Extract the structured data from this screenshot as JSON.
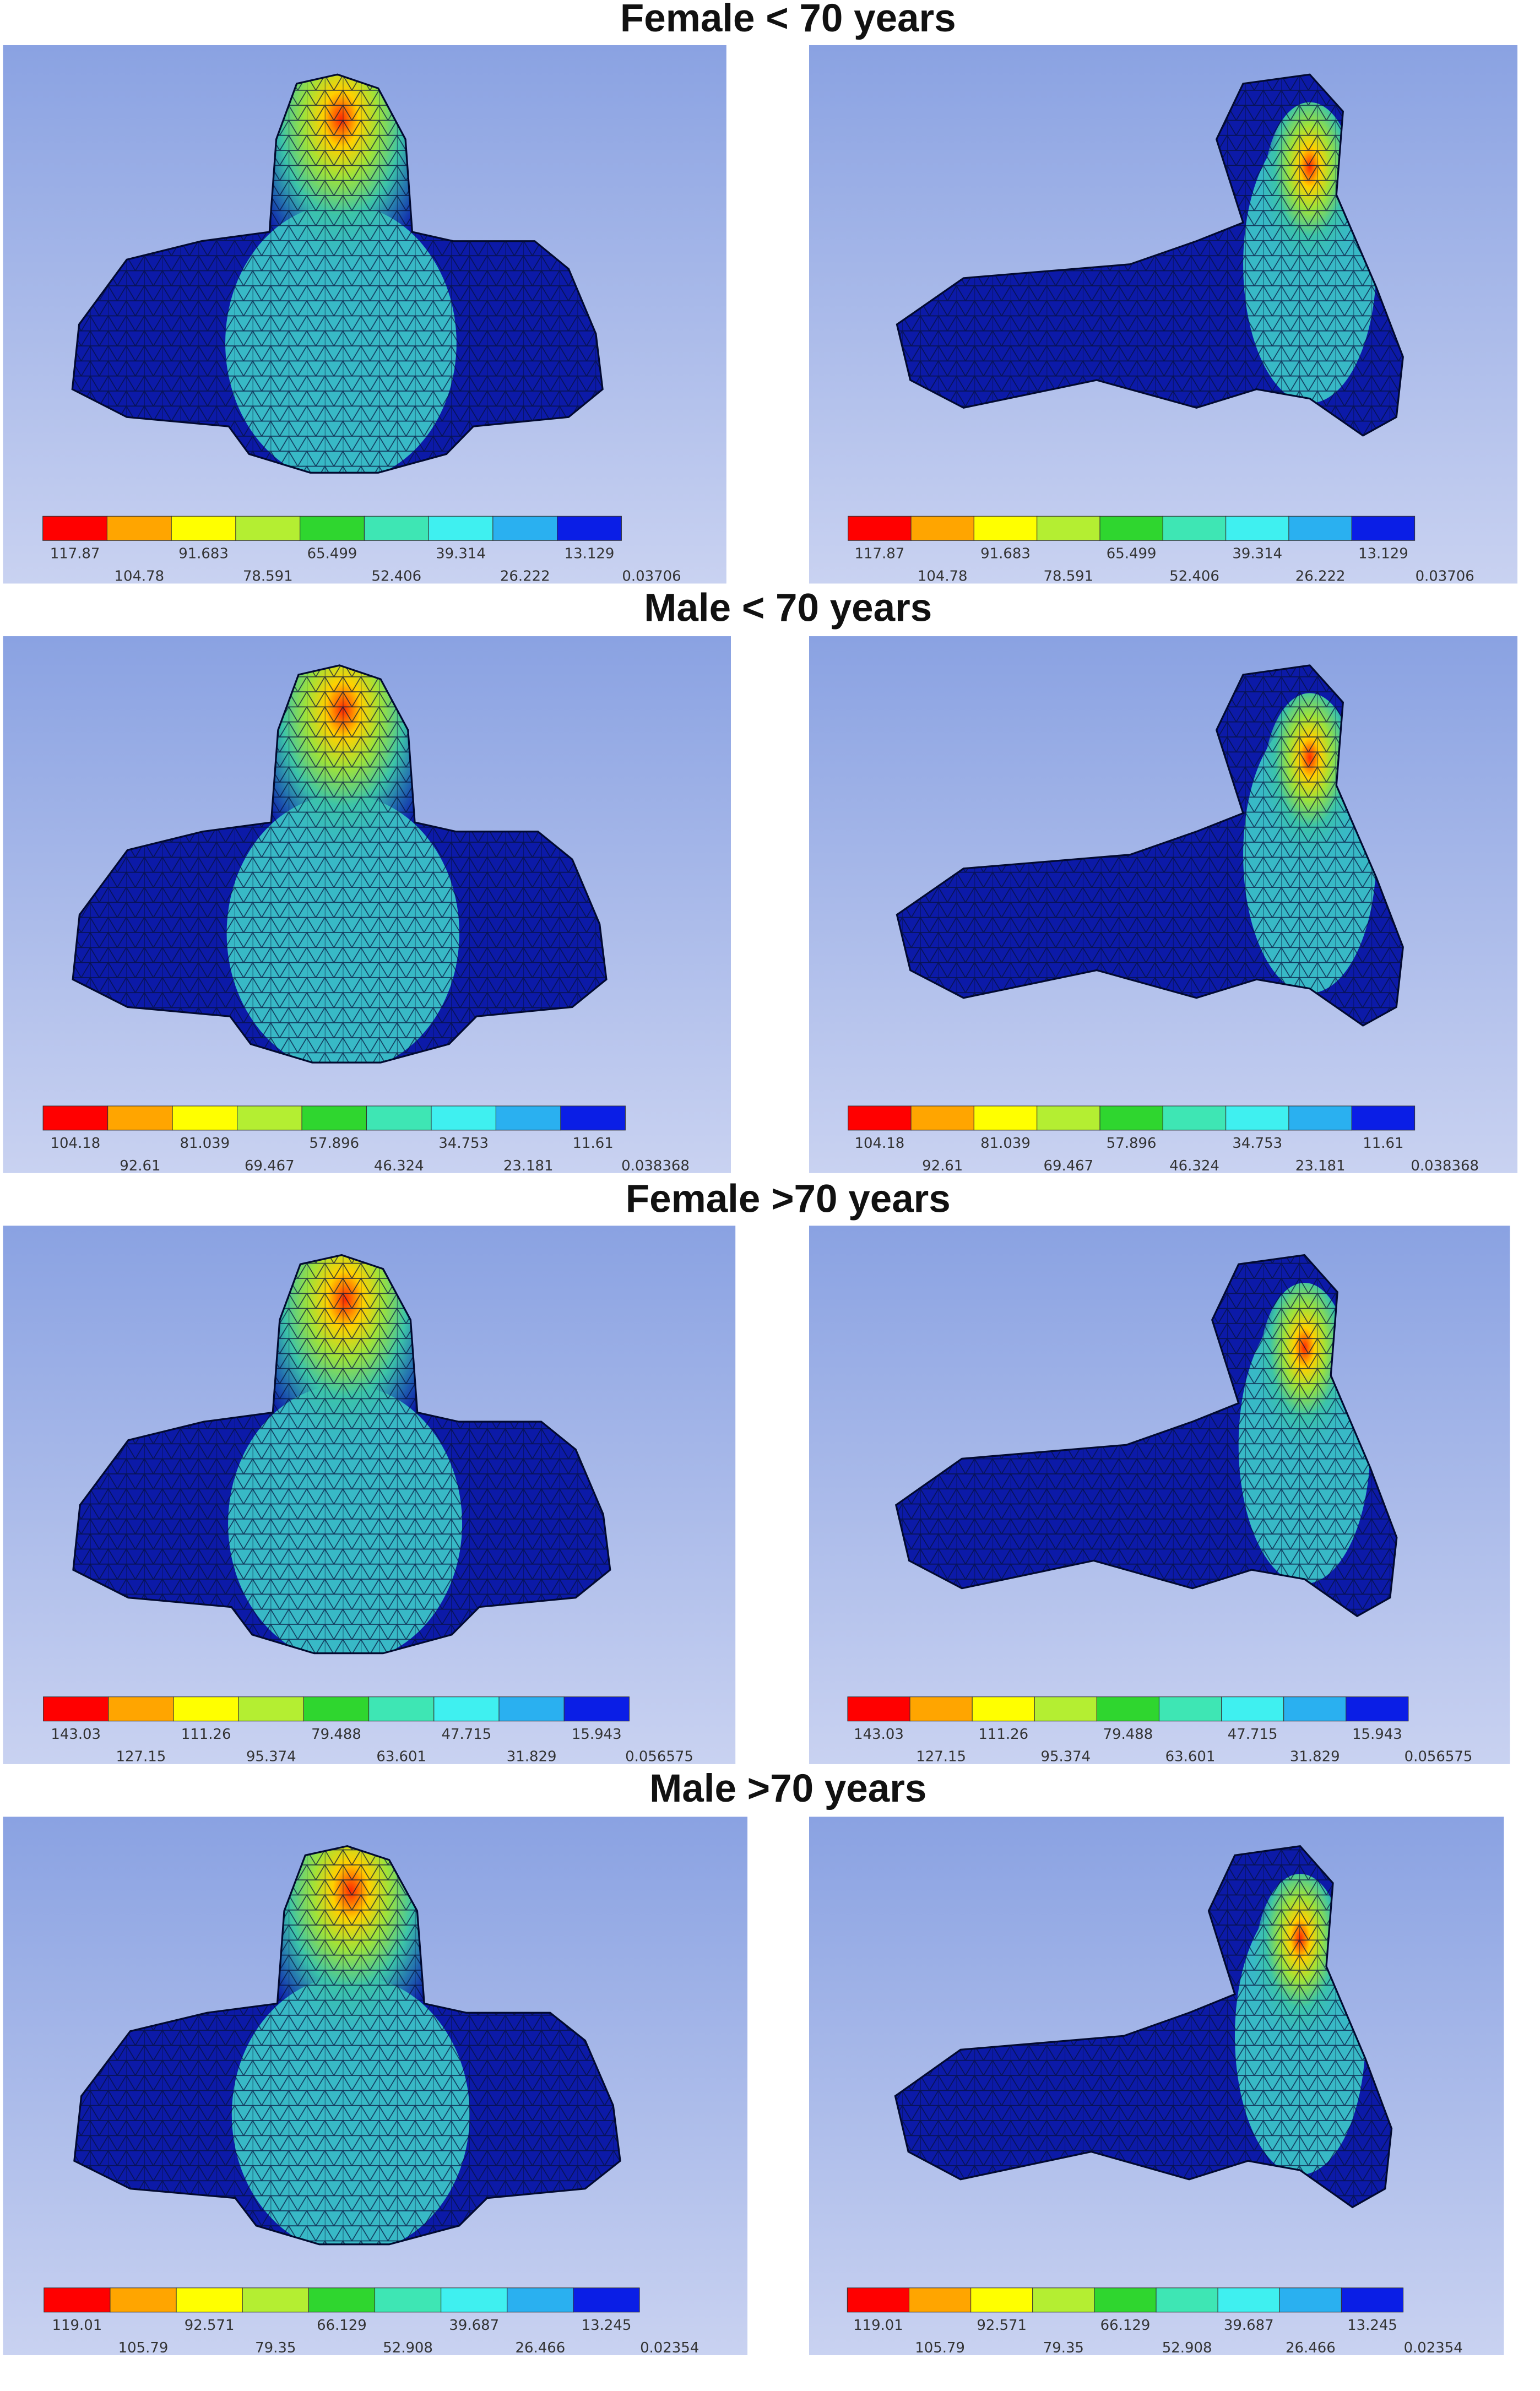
{
  "sections": [
    {
      "title": "Female < 70 years",
      "scale": [
        "117.87",
        "104.78",
        "91.683",
        "78.591",
        "65.499",
        "52.406",
        "39.314",
        "26.222",
        "13.129",
        "0.03706"
      ]
    },
    {
      "title": "Male < 70 years",
      "scale": [
        "104.18",
        "92.61",
        "81.039",
        "69.467",
        "57.896",
        "46.324",
        "34.753",
        "23.181",
        "11.61",
        "0.038368"
      ]
    },
    {
      "title": "Female >70 years",
      "scale": [
        "143.03",
        "127.15",
        "111.26",
        "95.374",
        "79.488",
        "63.601",
        "47.715",
        "31.829",
        "15.943",
        "0.056575"
      ]
    },
    {
      "title": "Male >70 years",
      "scale": [
        "119.01",
        "105.79",
        "92.571",
        "79.35",
        "66.129",
        "52.908",
        "39.687",
        "26.466",
        "13.245",
        "0.02354"
      ]
    }
  ]
}
